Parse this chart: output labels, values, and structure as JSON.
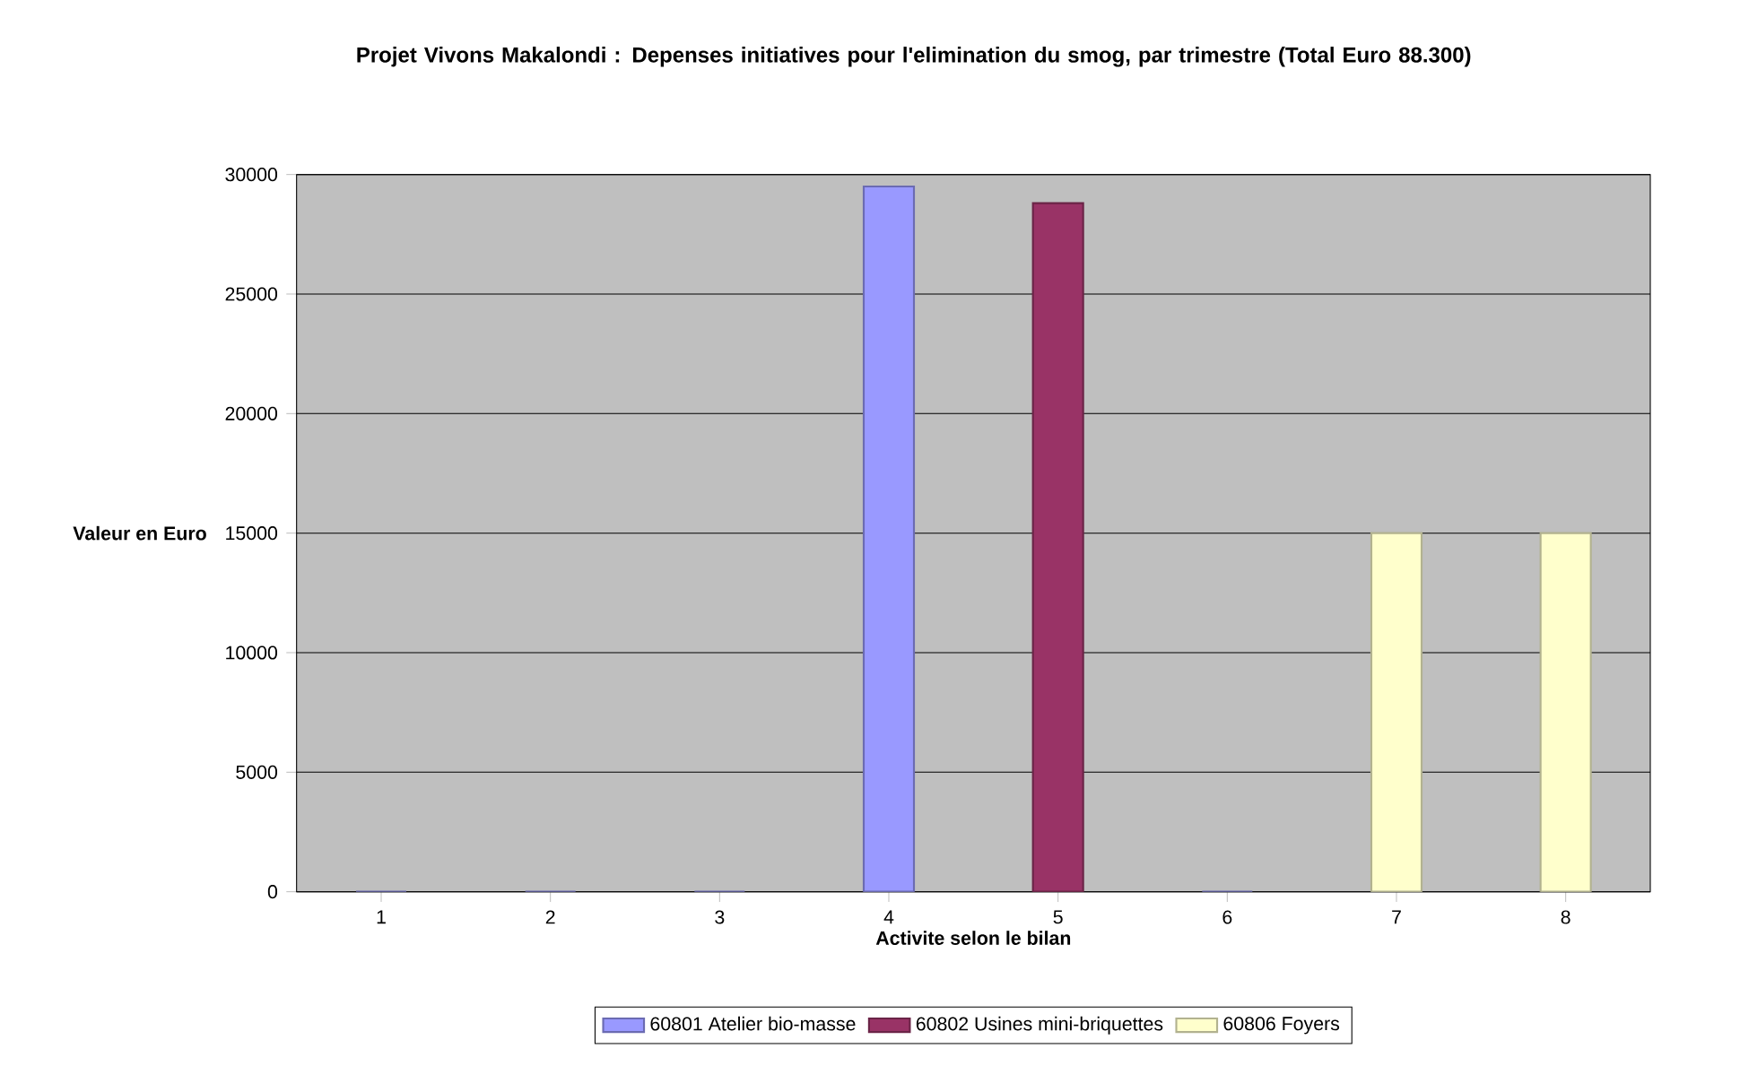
{
  "chart_data": {
    "type": "bar",
    "title": "Projet Vivons Makalondi : Depenses initiatives pour l'elimination du smog, par trimestre (Total Euro 88.300)",
    "xlabel": "Activite selon le bilan",
    "ylabel": "Valeur en Euro",
    "categories": [
      "1",
      "2",
      "3",
      "4",
      "5",
      "6",
      "7",
      "8"
    ],
    "series": [
      {
        "name": "60801 Atelier bio-masse",
        "color": "#9999ff",
        "values": [
          0,
          0,
          0,
          29500,
          null,
          0,
          null,
          null
        ]
      },
      {
        "name": "60802 Usines mini-briquettes",
        "color": "#993366",
        "values": [
          null,
          null,
          null,
          null,
          28800,
          null,
          null,
          null
        ]
      },
      {
        "name": "60806 Foyers",
        "color": "#ffffcc",
        "values": [
          null,
          null,
          null,
          null,
          null,
          null,
          15000,
          15000
        ]
      }
    ],
    "ylim": [
      0,
      30000
    ],
    "yticks": [
      0,
      5000,
      10000,
      15000,
      20000,
      25000,
      30000
    ],
    "grid": "y",
    "legend": "bottom"
  }
}
